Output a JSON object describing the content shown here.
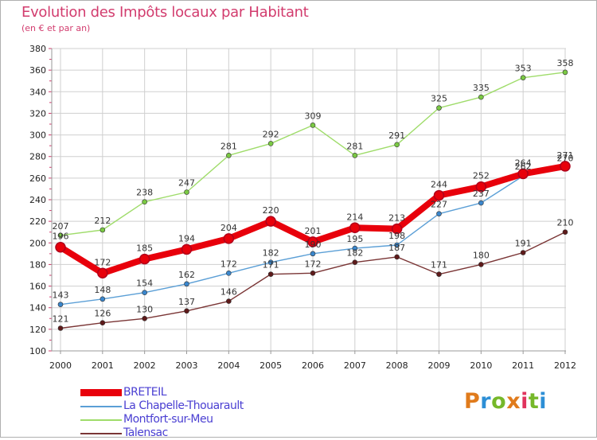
{
  "title": "Evolution des Impôts locaux par Habitant",
  "subtitle": "(en € et par an)",
  "logo_text": "Proxiti",
  "logo_colors": [
    "#e07b1c",
    "#2d8fd6",
    "#76b82a",
    "#e07b1c",
    "#e0335d",
    "#76b82a",
    "#2d8fd6"
  ],
  "colors": {
    "title": "#d23c6e",
    "grid": "#cfcfcf",
    "tick_marks": "#d23c6e",
    "legend_text": "#4a3fd2"
  },
  "chart_data": {
    "type": "line",
    "title": "Evolution des Impôts locaux par Habitant",
    "subtitle": "(en € et par an)",
    "xlabel": "",
    "ylabel": "",
    "ylim": [
      100,
      380
    ],
    "ytick_step": 20,
    "grid": true,
    "legend_position": "bottom-left",
    "categories": [
      "2000",
      "2001",
      "2002",
      "2003",
      "2004",
      "2005",
      "2006",
      "2007",
      "2008",
      "2009",
      "2010",
      "2011",
      "2012"
    ],
    "series": [
      {
        "name": "BRETEIL",
        "color": "#e8000b",
        "marker_color": "#b0001a",
        "style": "thick",
        "values": [
          196,
          172,
          185,
          194,
          204,
          220,
          201,
          214,
          213,
          244,
          252,
          264,
          271
        ]
      },
      {
        "name": "La Chapelle-Thouarault",
        "color": "#5b9fd6",
        "marker_color": "#3a86cc",
        "style": "thin",
        "values": [
          143,
          148,
          154,
          162,
          172,
          182,
          190,
          195,
          198,
          227,
          237,
          262,
          270
        ]
      },
      {
        "name": "Montfort-sur-Meu",
        "color": "#9fdc6a",
        "marker_color": "#7ac943",
        "style": "thin",
        "values": [
          207,
          212,
          238,
          247,
          281,
          292,
          309,
          281,
          291,
          325,
          335,
          353,
          358
        ]
      },
      {
        "name": "Talensac",
        "color": "#7a3535",
        "marker_color": "#5e1a1a",
        "style": "thin",
        "values": [
          121,
          126,
          130,
          137,
          146,
          171,
          172,
          182,
          187,
          171,
          180,
          191,
          210
        ]
      }
    ]
  }
}
